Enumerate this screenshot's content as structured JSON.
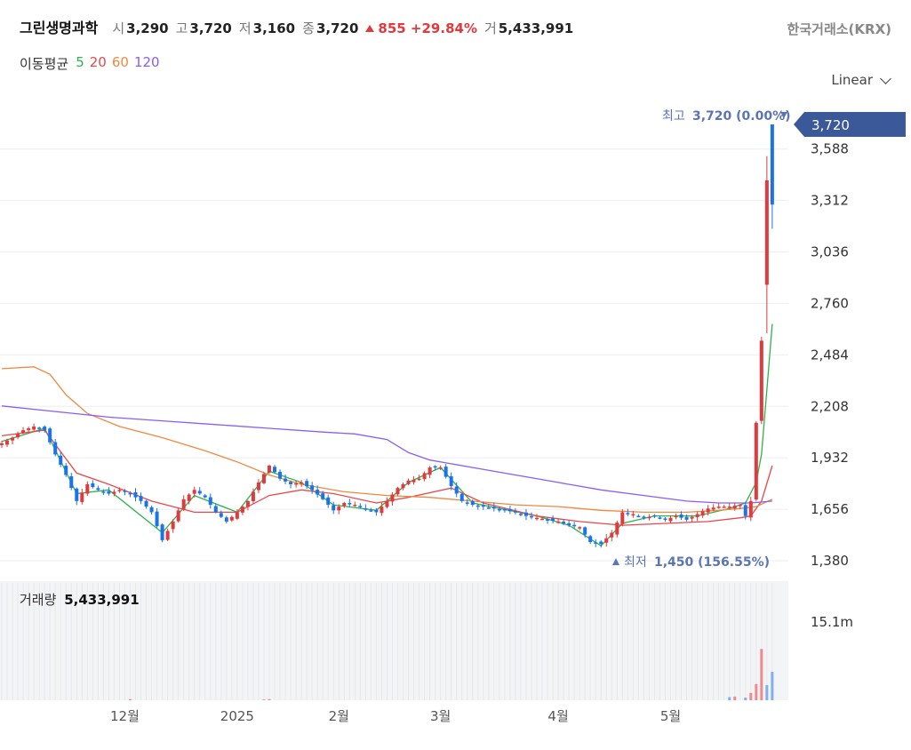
{
  "header": {
    "name": "그린생명과학",
    "open_label": "시",
    "open": "3,290",
    "high_label": "고",
    "high": "3,720",
    "low_label": "저",
    "low": "3,160",
    "close_label": "종",
    "close": "3,720",
    "change": "855 +29.84%",
    "volume_label": "거",
    "volume": "5,433,991",
    "exchange": "한국거래소(KRX)"
  },
  "ma_legend": {
    "title": "이동평균",
    "items": [
      {
        "label": "5",
        "color": "#2db34a"
      },
      {
        "label": "20",
        "color": "#e8474c"
      },
      {
        "label": "60",
        "color": "#f0883e"
      },
      {
        "label": "120",
        "color": "#8b5cf6"
      }
    ]
  },
  "scale_select": {
    "value": "Linear"
  },
  "colors": {
    "up": "#e03a3e",
    "down": "#1a73e8",
    "price_tag": "#3b5998",
    "annotation": "#5b74b3"
  },
  "chart_data": {
    "type": "candlestick",
    "y_ticks": [
      1380,
      1656,
      1932,
      2208,
      2484,
      2760,
      3036,
      3312,
      3588
    ],
    "y_tick_labels": [
      "1,380",
      "1,656",
      "1,932",
      "2,208",
      "2,484",
      "2,760",
      "3,036",
      "3,312",
      "3,588"
    ],
    "ylim": [
      1380,
      3720
    ],
    "x_tick_labels": [
      "12월",
      "2025",
      "2월",
      "3월",
      "4월",
      "5월"
    ],
    "x_tick_positions": [
      23,
      44,
      63,
      82,
      104,
      125
    ],
    "current_price": 3720,
    "current_price_label": "3,720",
    "high_annotation": {
      "label": "최고",
      "value": "3,720 (0.00%)",
      "index": 144
    },
    "low_annotation": {
      "label": "최저",
      "value": "1,450 (156.55%)",
      "index": 112
    },
    "volume_label": "거래량",
    "volume_value": "5,433,991",
    "volume_tick_label": "15.1m",
    "volume_tick_value": 15100000,
    "volume_bars": [
      {
        "index": 24,
        "value": 200000,
        "dir": "up"
      },
      {
        "index": 49,
        "value": 150000,
        "dir": "up"
      },
      {
        "index": 50,
        "value": 200000,
        "dir": "up"
      },
      {
        "index": 136,
        "value": 600000,
        "dir": "down"
      },
      {
        "index": 137,
        "value": 700000,
        "dir": "up"
      },
      {
        "index": 139,
        "value": 500000,
        "dir": "down"
      },
      {
        "index": 140,
        "value": 1400000,
        "dir": "up"
      },
      {
        "index": 141,
        "value": 3100000,
        "dir": "up"
      },
      {
        "index": 142,
        "value": 9800000,
        "dir": "up"
      },
      {
        "index": 143,
        "value": 2900000,
        "dir": "down"
      },
      {
        "index": 144,
        "value": 5433991,
        "dir": "down"
      }
    ],
    "anchors": [
      [
        0,
        2010
      ],
      [
        2,
        2040
      ],
      [
        4,
        2080
      ],
      [
        6,
        2100
      ],
      [
        8,
        2080
      ],
      [
        10,
        1950
      ],
      [
        12,
        1840
      ],
      [
        14,
        1700
      ],
      [
        16,
        1790
      ],
      [
        18,
        1760
      ],
      [
        20,
        1740
      ],
      [
        22,
        1760
      ],
      [
        24,
        1740
      ],
      [
        26,
        1700
      ],
      [
        28,
        1640
      ],
      [
        30,
        1490
      ],
      [
        32,
        1590
      ],
      [
        34,
        1710
      ],
      [
        36,
        1760
      ],
      [
        38,
        1720
      ],
      [
        40,
        1640
      ],
      [
        42,
        1590
      ],
      [
        44,
        1640
      ],
      [
        46,
        1700
      ],
      [
        48,
        1800
      ],
      [
        50,
        1890
      ],
      [
        52,
        1820
      ],
      [
        54,
        1790
      ],
      [
        56,
        1800
      ],
      [
        58,
        1760
      ],
      [
        60,
        1710
      ],
      [
        62,
        1650
      ],
      [
        64,
        1690
      ],
      [
        66,
        1680
      ],
      [
        68,
        1660
      ],
      [
        70,
        1640
      ],
      [
        72,
        1700
      ],
      [
        74,
        1770
      ],
      [
        76,
        1810
      ],
      [
        78,
        1820
      ],
      [
        80,
        1880
      ],
      [
        82,
        1880
      ],
      [
        84,
        1780
      ],
      [
        86,
        1700
      ],
      [
        88,
        1680
      ],
      [
        90,
        1670
      ],
      [
        92,
        1660
      ],
      [
        94,
        1650
      ],
      [
        96,
        1640
      ],
      [
        98,
        1620
      ],
      [
        100,
        1610
      ],
      [
        102,
        1600
      ],
      [
        104,
        1590
      ],
      [
        106,
        1570
      ],
      [
        108,
        1560
      ],
      [
        110,
        1480
      ],
      [
        112,
        1470
      ],
      [
        114,
        1530
      ],
      [
        116,
        1640
      ],
      [
        118,
        1630
      ],
      [
        120,
        1610
      ],
      [
        122,
        1620
      ],
      [
        124,
        1600
      ],
      [
        126,
        1620
      ],
      [
        128,
        1600
      ],
      [
        130,
        1630
      ],
      [
        132,
        1660
      ],
      [
        134,
        1670
      ],
      [
        136,
        1670
      ],
      [
        138,
        1680
      ],
      [
        139,
        1620
      ],
      [
        140,
        1700
      ],
      [
        141,
        2120
      ],
      [
        142,
        2860
      ],
      [
        143,
        3420
      ],
      [
        144,
        3290
      ]
    ],
    "ma_lines": [
      {
        "name": "5",
        "color": "#2db34a",
        "points": [
          [
            0,
            2020
          ],
          [
            8,
            2090
          ],
          [
            14,
            1740
          ],
          [
            20,
            1760
          ],
          [
            30,
            1530
          ],
          [
            36,
            1730
          ],
          [
            44,
            1640
          ],
          [
            50,
            1860
          ],
          [
            56,
            1800
          ],
          [
            62,
            1680
          ],
          [
            70,
            1650
          ],
          [
            76,
            1800
          ],
          [
            82,
            1880
          ],
          [
            88,
            1690
          ],
          [
            100,
            1620
          ],
          [
            106,
            1570
          ],
          [
            112,
            1460
          ],
          [
            116,
            1580
          ],
          [
            122,
            1620
          ],
          [
            130,
            1620
          ],
          [
            136,
            1660
          ],
          [
            139,
            1690
          ],
          [
            141,
            1800
          ],
          [
            142,
            1950
          ],
          [
            143,
            2300
          ],
          [
            144,
            2650
          ]
        ]
      },
      {
        "name": "20",
        "color": "#e8474c",
        "points": [
          [
            0,
            2050
          ],
          [
            8,
            2080
          ],
          [
            14,
            1850
          ],
          [
            20,
            1790
          ],
          [
            28,
            1700
          ],
          [
            36,
            1640
          ],
          [
            44,
            1640
          ],
          [
            50,
            1730
          ],
          [
            56,
            1760
          ],
          [
            62,
            1740
          ],
          [
            70,
            1690
          ],
          [
            76,
            1720
          ],
          [
            84,
            1770
          ],
          [
            90,
            1690
          ],
          [
            100,
            1620
          ],
          [
            108,
            1590
          ],
          [
            116,
            1570
          ],
          [
            124,
            1580
          ],
          [
            132,
            1590
          ],
          [
            138,
            1610
          ],
          [
            140,
            1620
          ],
          [
            142,
            1700
          ],
          [
            144,
            1890
          ]
        ]
      },
      {
        "name": "60",
        "color": "#f0883e",
        "points": [
          [
            0,
            2410
          ],
          [
            6,
            2420
          ],
          [
            9,
            2380
          ],
          [
            12,
            2270
          ],
          [
            16,
            2170
          ],
          [
            22,
            2100
          ],
          [
            30,
            2040
          ],
          [
            38,
            1970
          ],
          [
            44,
            1910
          ],
          [
            50,
            1840
          ],
          [
            56,
            1790
          ],
          [
            64,
            1750
          ],
          [
            72,
            1730
          ],
          [
            80,
            1720
          ],
          [
            88,
            1700
          ],
          [
            96,
            1680
          ],
          [
            104,
            1670
          ],
          [
            112,
            1650
          ],
          [
            120,
            1640
          ],
          [
            128,
            1640
          ],
          [
            134,
            1650
          ],
          [
            138,
            1660
          ],
          [
            141,
            1670
          ],
          [
            144,
            1710
          ]
        ]
      },
      {
        "name": "120",
        "color": "#8b5cf6",
        "points": [
          [
            0,
            2210
          ],
          [
            10,
            2180
          ],
          [
            20,
            2150
          ],
          [
            30,
            2130
          ],
          [
            40,
            2110
          ],
          [
            50,
            2090
          ],
          [
            60,
            2070
          ],
          [
            66,
            2060
          ],
          [
            72,
            2030
          ],
          [
            76,
            1960
          ],
          [
            80,
            1920
          ],
          [
            88,
            1880
          ],
          [
            96,
            1840
          ],
          [
            104,
            1800
          ],
          [
            112,
            1760
          ],
          [
            120,
            1730
          ],
          [
            128,
            1700
          ],
          [
            134,
            1690
          ],
          [
            140,
            1690
          ],
          [
            144,
            1700
          ]
        ]
      }
    ]
  }
}
